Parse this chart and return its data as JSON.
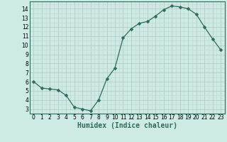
{
  "x": [
    0,
    1,
    2,
    3,
    4,
    5,
    6,
    7,
    8,
    9,
    10,
    11,
    12,
    13,
    14,
    15,
    16,
    17,
    18,
    19,
    20,
    21,
    22,
    23
  ],
  "y": [
    6.0,
    5.3,
    5.2,
    5.1,
    4.5,
    3.2,
    3.0,
    2.8,
    4.0,
    6.3,
    7.5,
    10.8,
    11.8,
    12.4,
    12.6,
    13.2,
    13.9,
    14.3,
    14.2,
    14.0,
    13.4,
    12.0,
    10.7,
    9.5
  ],
  "line_color": "#2e6b5e",
  "marker": "D",
  "marker_size": 2.5,
  "bg_color": "#cdeae4",
  "grid_color_major": "#adc8c0",
  "grid_color_minor": "#bdd8d0",
  "xlabel": "Humidex (Indice chaleur)",
  "xlim": [
    -0.5,
    23.5
  ],
  "ylim": [
    2.5,
    14.8
  ],
  "yticks": [
    3,
    4,
    5,
    6,
    7,
    8,
    9,
    10,
    11,
    12,
    13,
    14
  ],
  "xticks": [
    0,
    1,
    2,
    3,
    4,
    5,
    6,
    7,
    8,
    9,
    10,
    11,
    12,
    13,
    14,
    15,
    16,
    17,
    18,
    19,
    20,
    21,
    22,
    23
  ],
  "tick_fontsize": 5.5,
  "label_fontsize": 7.0,
  "spine_color": "#2e6b5e"
}
